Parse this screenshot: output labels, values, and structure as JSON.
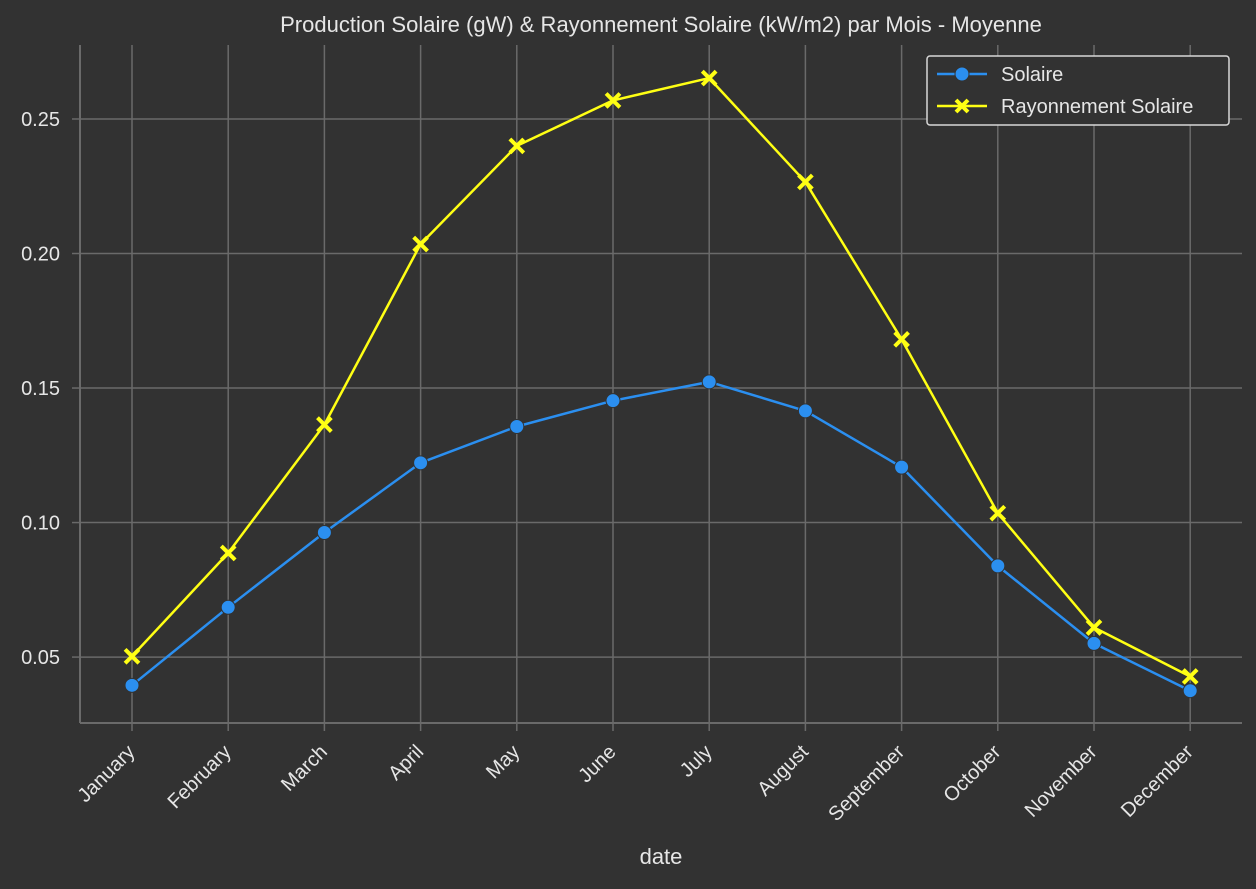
{
  "chart_data": {
    "type": "line",
    "title": "Production Solaire (gW) & Rayonnement Solaire (kW/m2) par Mois - Moyenne",
    "xlabel": "date",
    "ylabel": "",
    "categories": [
      "January",
      "February",
      "March",
      "April",
      "May",
      "June",
      "July",
      "August",
      "September",
      "October",
      "November",
      "December"
    ],
    "ylim": [
      0.0255,
      0.2775
    ],
    "yticks": [
      "0.05",
      "0.10",
      "0.15",
      "0.20",
      "0.25"
    ],
    "grid": true,
    "legend_position": "top-right",
    "series": [
      {
        "name": "Solaire",
        "color": "#2b8ff0",
        "marker": "circle",
        "values": [
          0.0395,
          0.0685,
          0.0963,
          0.1222,
          0.1357,
          0.1453,
          0.1523,
          0.1415,
          0.1206,
          0.0839,
          0.0551,
          0.0375
        ]
      },
      {
        "name": "Rayonnement Solaire",
        "color": "#ffff14",
        "marker": "x",
        "values": [
          0.0503,
          0.0887,
          0.1364,
          0.2035,
          0.24,
          0.2569,
          0.2652,
          0.2266,
          0.1681,
          0.1035,
          0.061,
          0.0428
        ]
      }
    ]
  },
  "colors": {
    "background": "#323232",
    "grid": "#6a6a6a",
    "text": "#e6e6e6"
  }
}
